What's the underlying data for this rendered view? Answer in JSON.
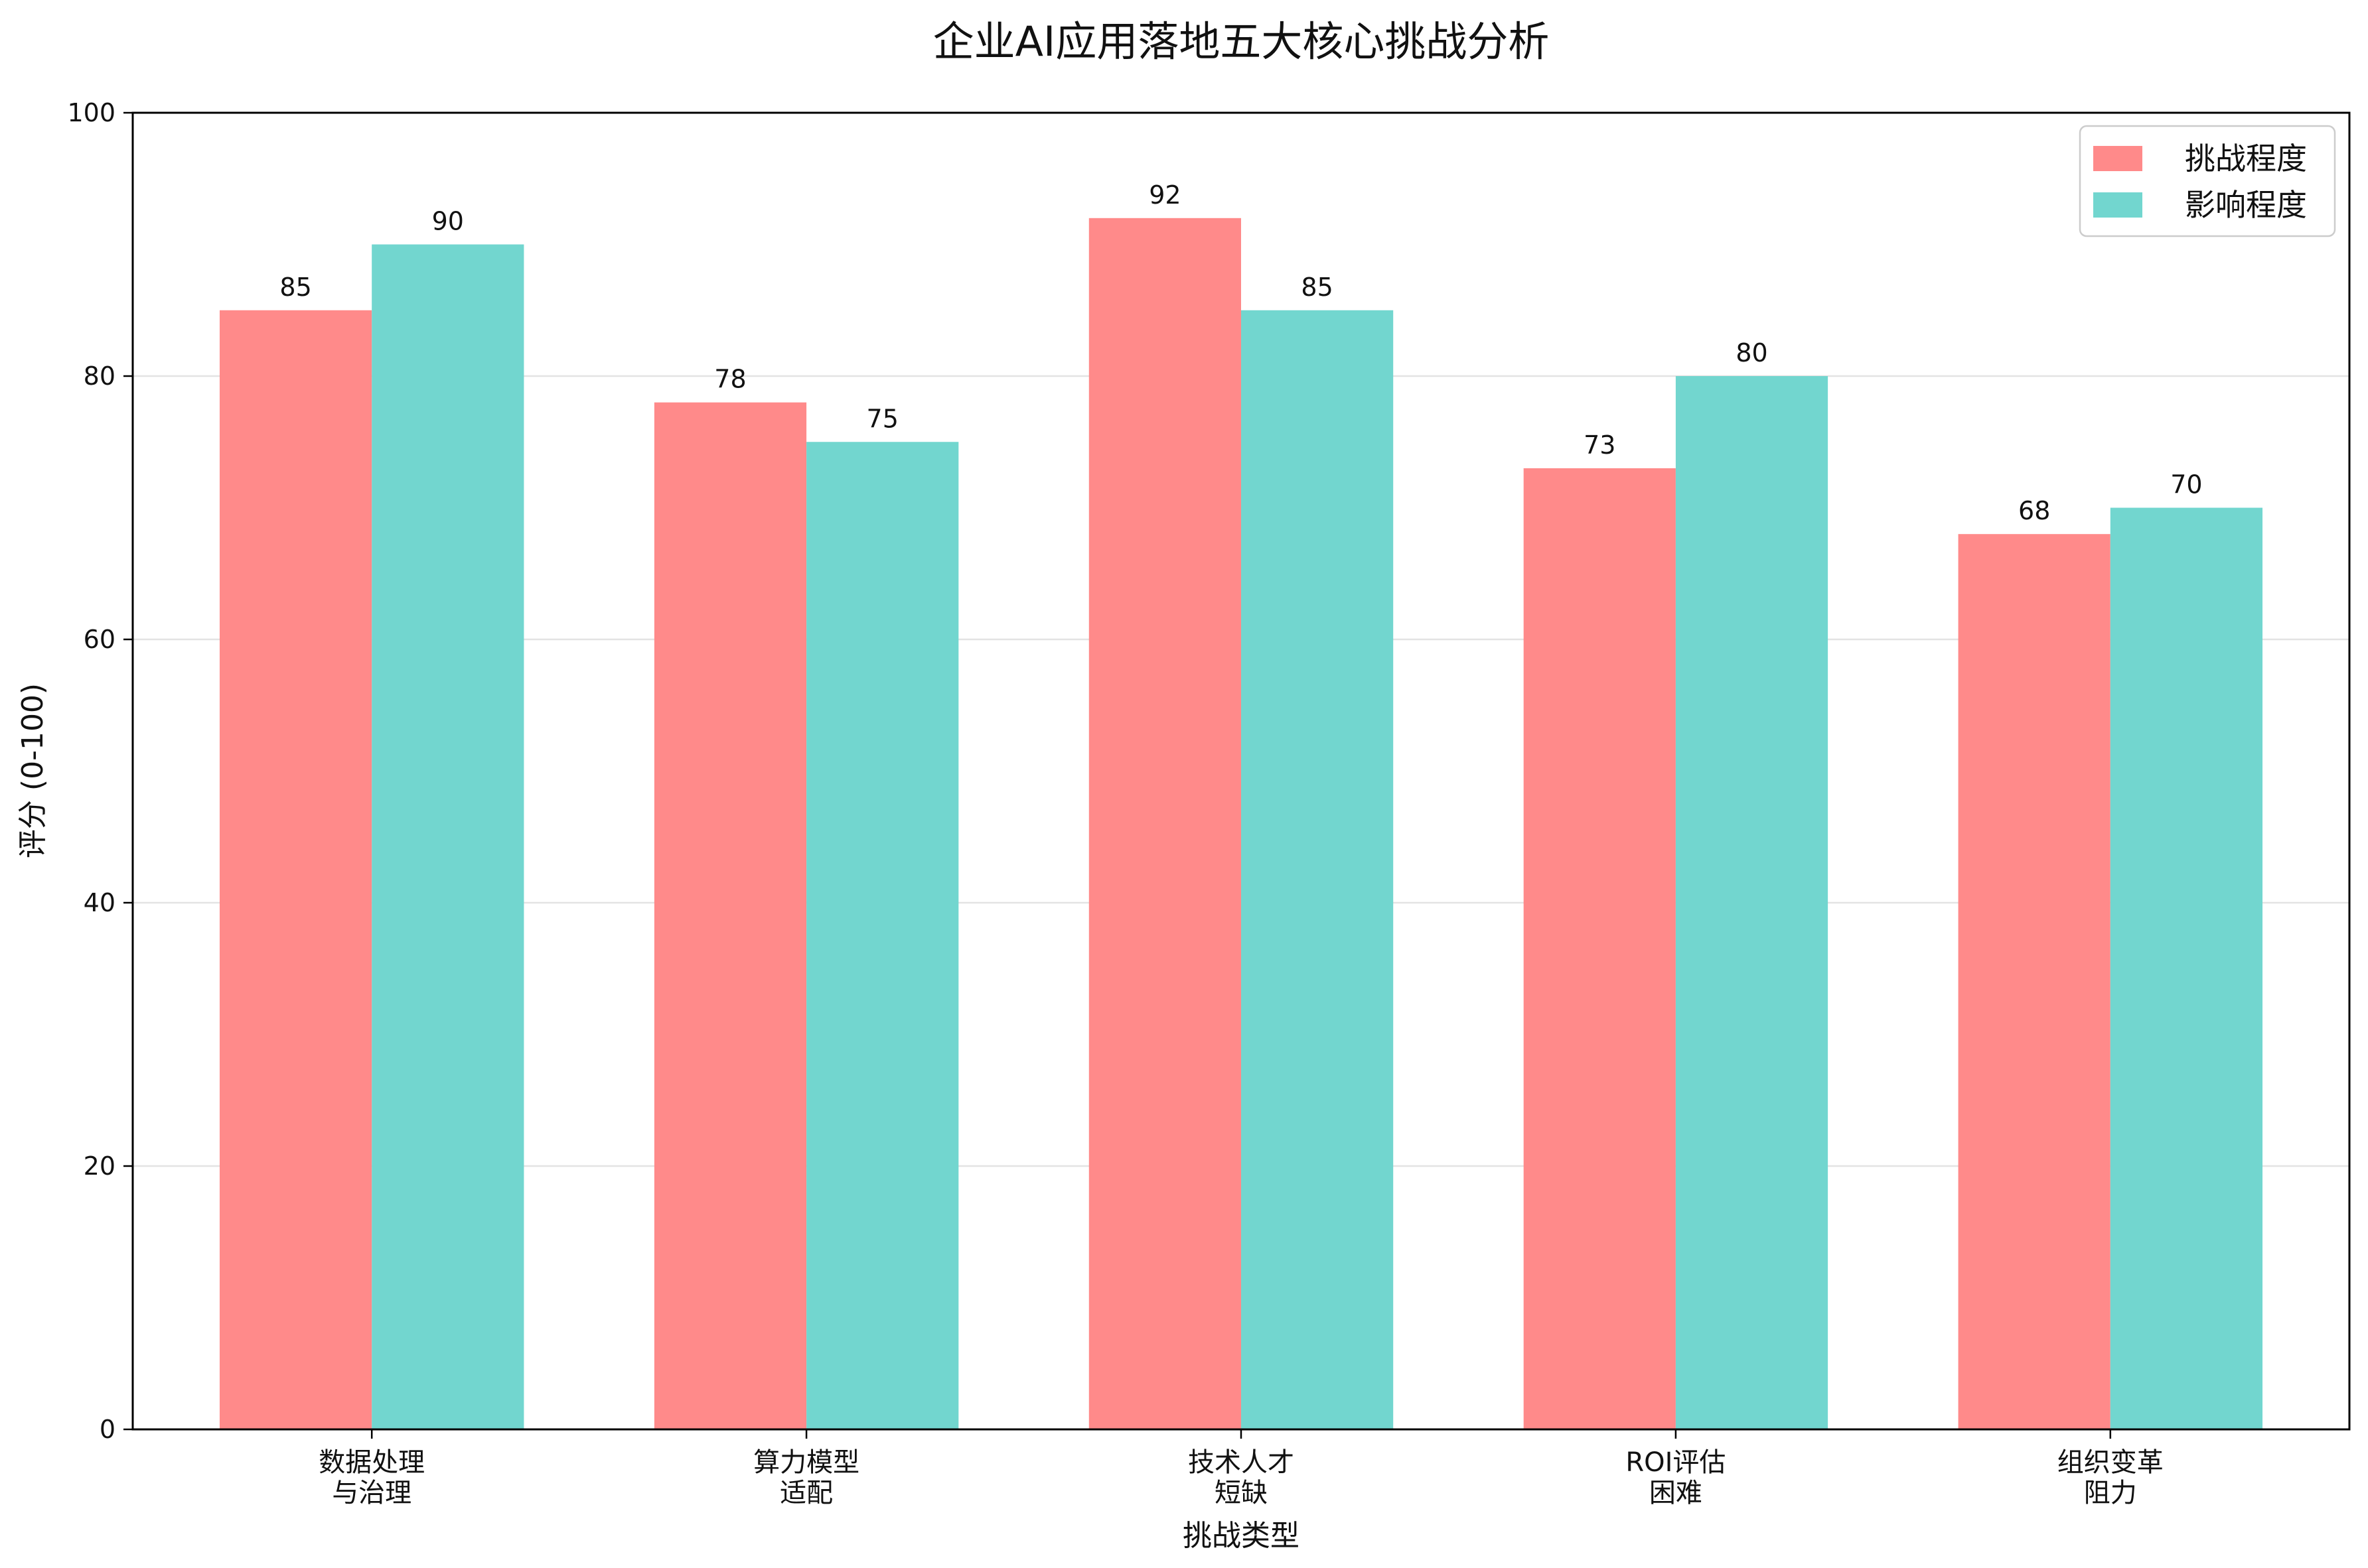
{
  "chart_data": {
    "type": "bar",
    "title": "企业AI应用落地五大核心挑战分析",
    "xlabel": "挑战类型",
    "ylabel": "评分 (0-100)",
    "ylim": [
      0,
      100
    ],
    "yticks": [
      0,
      20,
      40,
      60,
      80,
      100
    ],
    "grid": "horizontal",
    "legend_position": "top-right",
    "categories": [
      [
        "数据处理",
        "与治理"
      ],
      [
        "算力模型",
        "适配"
      ],
      [
        "技术人才",
        "短缺"
      ],
      [
        "ROI评估",
        "困难"
      ],
      [
        "组织变革",
        "阻力"
      ]
    ],
    "series": [
      {
        "name": "挑战程度",
        "color": "#ff8a8a",
        "values": [
          85,
          78,
          92,
          73,
          68
        ]
      },
      {
        "name": "影响程度",
        "color": "#72d6cf",
        "values": [
          90,
          75,
          85,
          80,
          70
        ]
      }
    ]
  }
}
